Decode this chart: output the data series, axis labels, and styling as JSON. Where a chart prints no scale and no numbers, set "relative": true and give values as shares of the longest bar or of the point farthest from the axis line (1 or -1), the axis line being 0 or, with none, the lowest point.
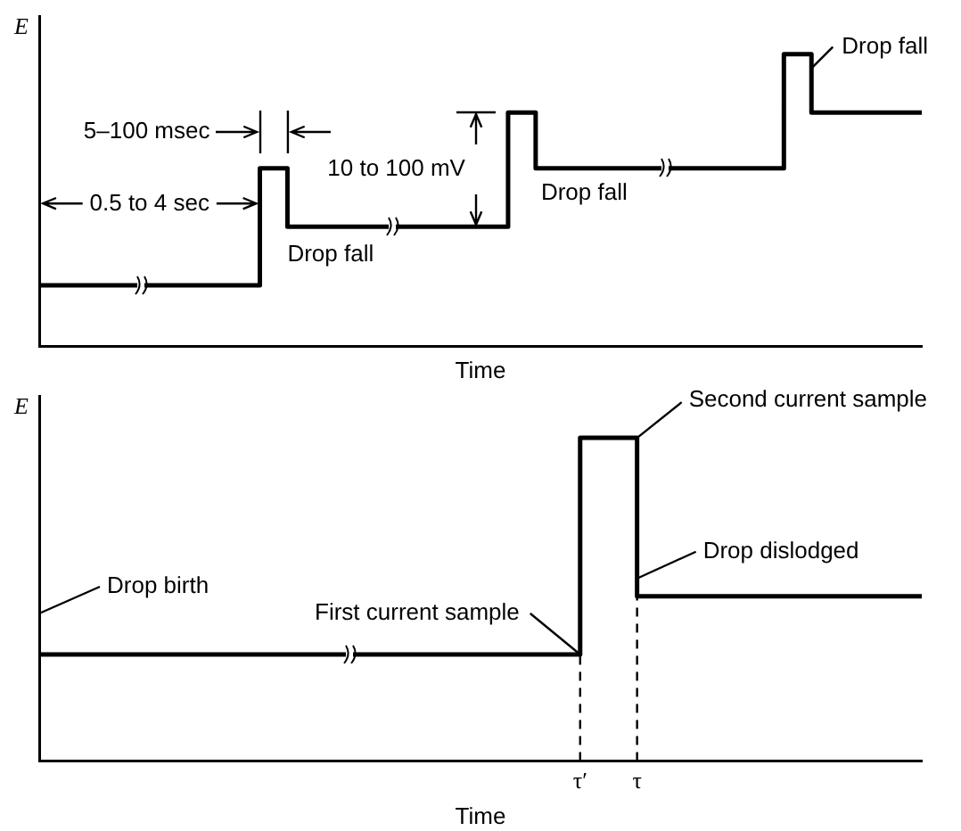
{
  "chart_data": [
    {
      "type": "step",
      "relative": true,
      "xlabel": "Time",
      "ylabel": "E",
      "tick_labels": false,
      "marker": "none",
      "line_style": "solid",
      "legend": false,
      "grid": false,
      "categories": [
        null,
        null,
        null,
        null,
        null,
        null,
        null,
        null,
        null,
        null,
        null,
        null,
        null,
        null,
        null,
        null,
        null,
        null,
        null,
        null,
        null,
        null,
        null,
        null,
        null,
        null,
        null,
        null,
        null,
        null,
        null,
        null,
        null
      ],
      "series": [
        {
          "color": "#000000",
          "values": [
            0.21,
            0.21,
            0.21,
            0.21,
            0.21,
            0.21,
            0.21,
            0.21,
            0.61,
            0.41,
            0.41,
            0.41,
            0.41,
            0.41,
            0.41,
            0.41,
            0.41,
            0.8,
            0.61,
            0.61,
            0.61,
            0.61,
            0.61,
            0.61,
            0.61,
            0.61,
            0.61,
            1,
            0.8,
            0.8,
            0.8,
            0.8,
            0.8
          ]
        }
      ],
      "annotations": [
        "5–100 msec",
        "0.5 to 4 sec",
        "10 to 100 mV",
        "Drop fall",
        "Drop fall",
        "Drop fall"
      ]
    },
    {
      "type": "step",
      "relative": true,
      "xlabel": "Time",
      "ylabel": "E",
      "tick_labels": "x",
      "marker": "none",
      "line_style": "solid",
      "legend": false,
      "grid": false,
      "categories": [
        null,
        null,
        null,
        null,
        null,
        null,
        null,
        null,
        null,
        null,
        null,
        null,
        null,
        null,
        null,
        null,
        null,
        null,
        null,
        "τ′",
        null,
        "τ",
        null,
        null,
        null,
        null,
        null,
        null,
        null,
        null,
        null,
        null
      ],
      "series": [
        {
          "color": "#000000",
          "values": [
            0.33,
            0.33,
            0.33,
            0.33,
            0.33,
            0.33,
            0.33,
            0.33,
            0.33,
            0.33,
            0.33,
            0.33,
            0.33,
            0.33,
            0.33,
            0.33,
            0.33,
            0.33,
            0.33,
            1,
            1,
            0.51,
            0.51,
            0.51,
            0.51,
            0.51,
            0.51,
            0.51,
            0.51,
            0.51,
            0.51,
            0.51
          ]
        }
      ],
      "ref_lines": [
        {
          "axis": "x",
          "value": "τ′",
          "line_style": "dashed"
        },
        {
          "axis": "x",
          "value": "τ",
          "line_style": "dashed"
        }
      ],
      "annotations": [
        "Drop birth",
        "First current sample",
        "Second current sample",
        "Drop dislodged"
      ]
    }
  ]
}
